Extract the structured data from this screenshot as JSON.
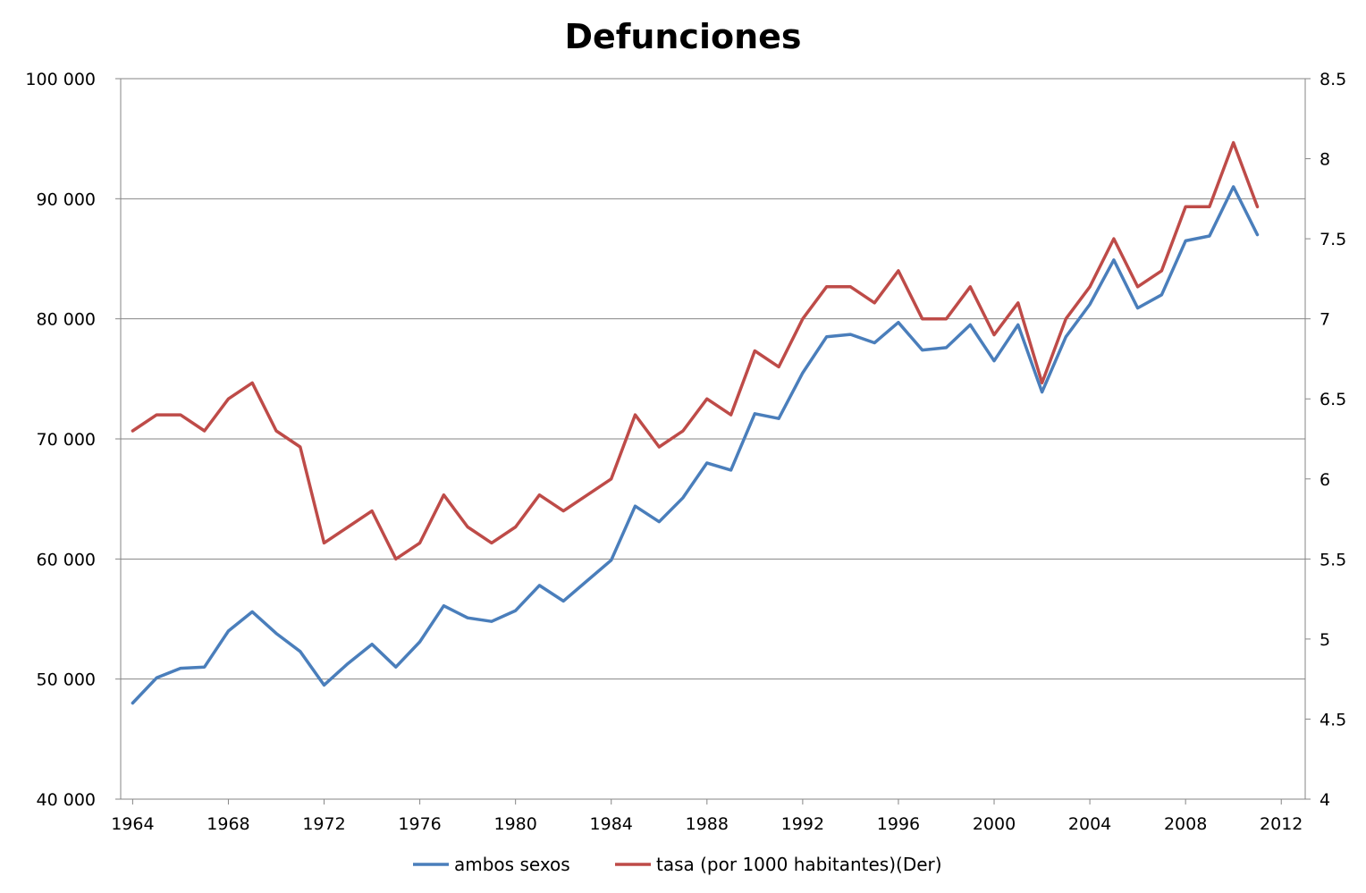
{
  "chart_data": {
    "type": "line",
    "title": "Defunciones",
    "x": [
      1964,
      1965,
      1966,
      1967,
      1968,
      1969,
      1970,
      1971,
      1972,
      1973,
      1974,
      1975,
      1976,
      1977,
      1978,
      1979,
      1980,
      1981,
      1982,
      1983,
      1984,
      1985,
      1986,
      1987,
      1988,
      1989,
      1990,
      1991,
      1992,
      1993,
      1994,
      1995,
      1996,
      1997,
      1998,
      1999,
      2000,
      2001,
      2002,
      2003,
      2004,
      2005,
      2006,
      2007,
      2008,
      2009,
      2010,
      2011
    ],
    "x_ticks": [
      "1964",
      "1968",
      "1972",
      "1976",
      "1980",
      "1984",
      "1988",
      "1992",
      "1996",
      "2000",
      "2004",
      "2008",
      "2012"
    ],
    "xlim": [
      1963.5,
      2013
    ],
    "y_left": {
      "ylim": [
        40000,
        100000
      ],
      "ticks": [
        "40 000",
        "50 000",
        "60 000",
        "70 000",
        "80 000",
        "90 000",
        "100 000"
      ]
    },
    "y_right": {
      "ylim": [
        4,
        8.5
      ],
      "ticks": [
        "4",
        "4.5",
        "5",
        "5.5",
        "6",
        "6.5",
        "7",
        "7.5",
        "8",
        "8.5"
      ]
    },
    "grid": true,
    "legend_position": "bottom",
    "series": [
      {
        "name": "ambos sexos",
        "axis": "left",
        "color": "#4a7ebb",
        "values": [
          48000,
          50100,
          50900,
          51000,
          54000,
          55600,
          53800,
          52300,
          49500,
          51300,
          52900,
          51000,
          53100,
          56100,
          55100,
          54800,
          55700,
          57800,
          56500,
          58200,
          59900,
          64400,
          63100,
          65100,
          68000,
          67400,
          72100,
          71700,
          75500,
          78500,
          78700,
          78000,
          79700,
          77400,
          77600,
          79500,
          76500,
          79500,
          73900,
          78500,
          81200,
          84900,
          80900,
          82000,
          86500,
          86900,
          91000,
          87000
        ]
      },
      {
        "name": "tasa (por 1000 habitantes)(Der)",
        "axis": "right",
        "color": "#be4b48",
        "values": [
          6.3,
          6.4,
          6.4,
          6.3,
          6.5,
          6.6,
          6.3,
          6.2,
          5.6,
          5.7,
          5.8,
          5.5,
          5.6,
          5.9,
          5.7,
          5.6,
          5.7,
          5.9,
          5.8,
          5.9,
          6.0,
          6.4,
          6.2,
          6.3,
          6.5,
          6.4,
          6.8,
          6.7,
          7.0,
          7.2,
          7.2,
          7.1,
          7.3,
          7.0,
          7.0,
          7.2,
          6.9,
          7.1,
          6.6,
          7.0,
          7.2,
          7.5,
          7.2,
          7.3,
          7.7,
          7.7,
          8.1,
          7.7
        ]
      }
    ]
  }
}
